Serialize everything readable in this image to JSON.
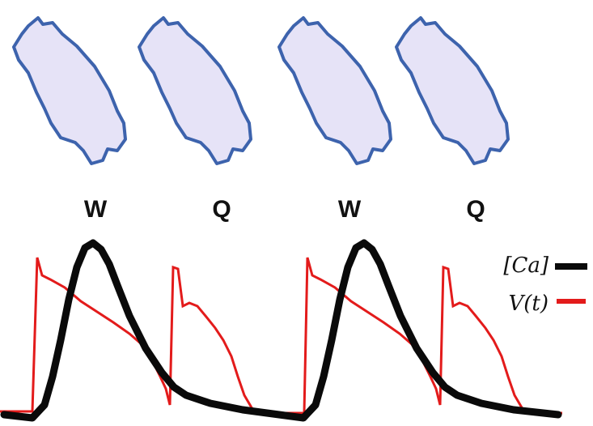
{
  "panels": [
    {
      "label": "W",
      "waves": true
    },
    {
      "label": "Q",
      "waves": false
    },
    {
      "label": "W",
      "waves": true
    },
    {
      "label": "Q",
      "waves": false
    }
  ],
  "legend": [
    {
      "label": "[Ca]",
      "color": "#0a0a0a"
    },
    {
      "label": "V(t)",
      "color": "#e31b1b"
    }
  ],
  "colors": {
    "cell_fill": "#e6e3f7",
    "cell_outline": "#3d63ad",
    "wave": "#e31b1b",
    "calcium": "#0a0a0a",
    "voltage": "#e31b1b"
  }
}
